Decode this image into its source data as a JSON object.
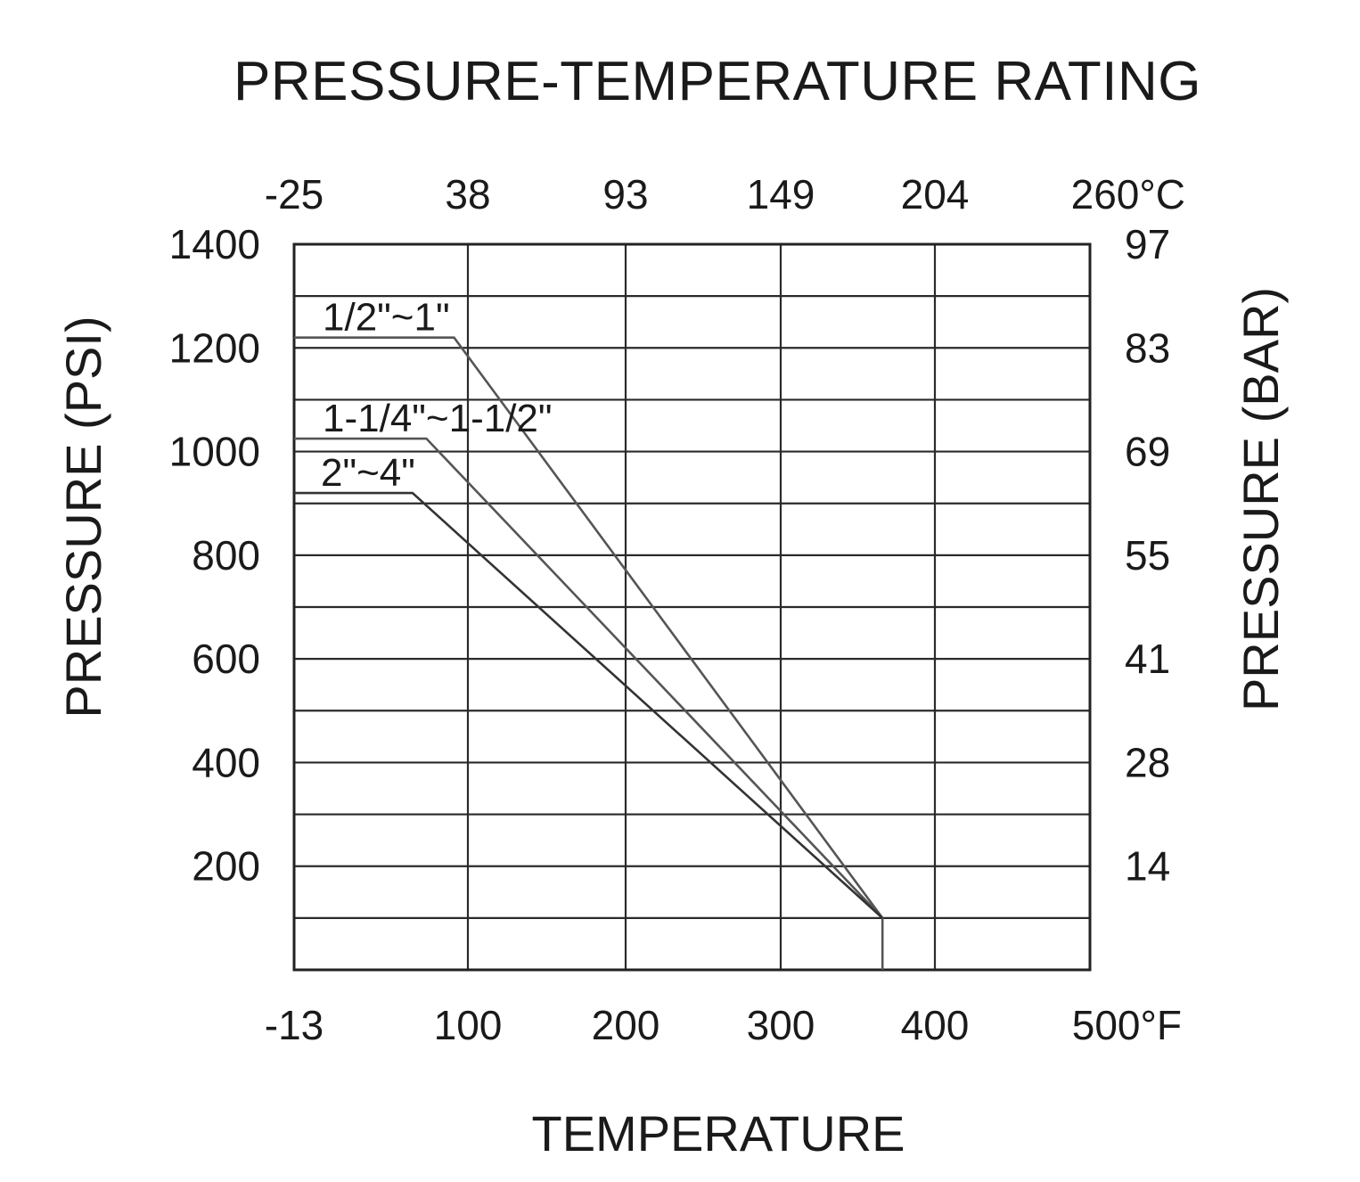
{
  "chart_data": {
    "type": "line",
    "title": "PRESSURE-TEMPERATURE RATING",
    "xlabel": "TEMPERATURE",
    "ylabel": "PRESSURE (PSI)",
    "ylabel_right": "PRESSURE (BAR)",
    "x_unit": "°F",
    "x_unit_top": "°C",
    "xlim": [
      -13,
      500
    ],
    "ylim": [
      0,
      1400
    ],
    "grid": true,
    "x_ticks_bottom": [
      {
        "value": -13,
        "label": "-13"
      },
      {
        "value": 100,
        "label": "100"
      },
      {
        "value": 200,
        "label": "200"
      },
      {
        "value": 300,
        "label": "300"
      },
      {
        "value": 400,
        "label": "400"
      },
      {
        "value": 500,
        "label": "500°F"
      }
    ],
    "x_ticks_top": [
      {
        "value": -13,
        "label": "-25"
      },
      {
        "value": 100,
        "label": "38"
      },
      {
        "value": 200,
        "label": "93"
      },
      {
        "value": 300,
        "label": "149"
      },
      {
        "value": 400,
        "label": "204"
      },
      {
        "value": 500,
        "label": "260°C"
      }
    ],
    "y_gridlines": [
      100,
      200,
      300,
      400,
      500,
      600,
      700,
      800,
      900,
      1000,
      1100,
      1200,
      1300,
      1400
    ],
    "y_ticks_left": [
      {
        "value": 200,
        "label": "200"
      },
      {
        "value": 400,
        "label": "400"
      },
      {
        "value": 600,
        "label": "600"
      },
      {
        "value": 800,
        "label": "800"
      },
      {
        "value": 1000,
        "label": "1000"
      },
      {
        "value": 1200,
        "label": "1200"
      },
      {
        "value": 1400,
        "label": "1400"
      }
    ],
    "y_ticks_right": [
      {
        "value": 200,
        "label": "14"
      },
      {
        "value": 400,
        "label": "28"
      },
      {
        "value": 600,
        "label": "41"
      },
      {
        "value": 800,
        "label": "55"
      },
      {
        "value": 1000,
        "label": "69"
      },
      {
        "value": 1200,
        "label": "83"
      },
      {
        "value": 1400,
        "label": "97"
      }
    ],
    "series": [
      {
        "name": "1/2\"~1\"",
        "color": "#555555",
        "points": [
          [
            -13,
            1220
          ],
          [
            91,
            1220
          ],
          [
            366,
            100
          ],
          [
            366,
            0
          ]
        ]
      },
      {
        "name": "1-1/4\"~1-1/2\"",
        "color": "#555555",
        "points": [
          [
            -13,
            1025
          ],
          [
            73,
            1025
          ],
          [
            366,
            100
          ]
        ]
      },
      {
        "name": "2\"~4\"",
        "color": "#333333",
        "points": [
          [
            -13,
            920
          ],
          [
            64,
            920
          ],
          [
            366,
            100
          ]
        ]
      }
    ]
  }
}
